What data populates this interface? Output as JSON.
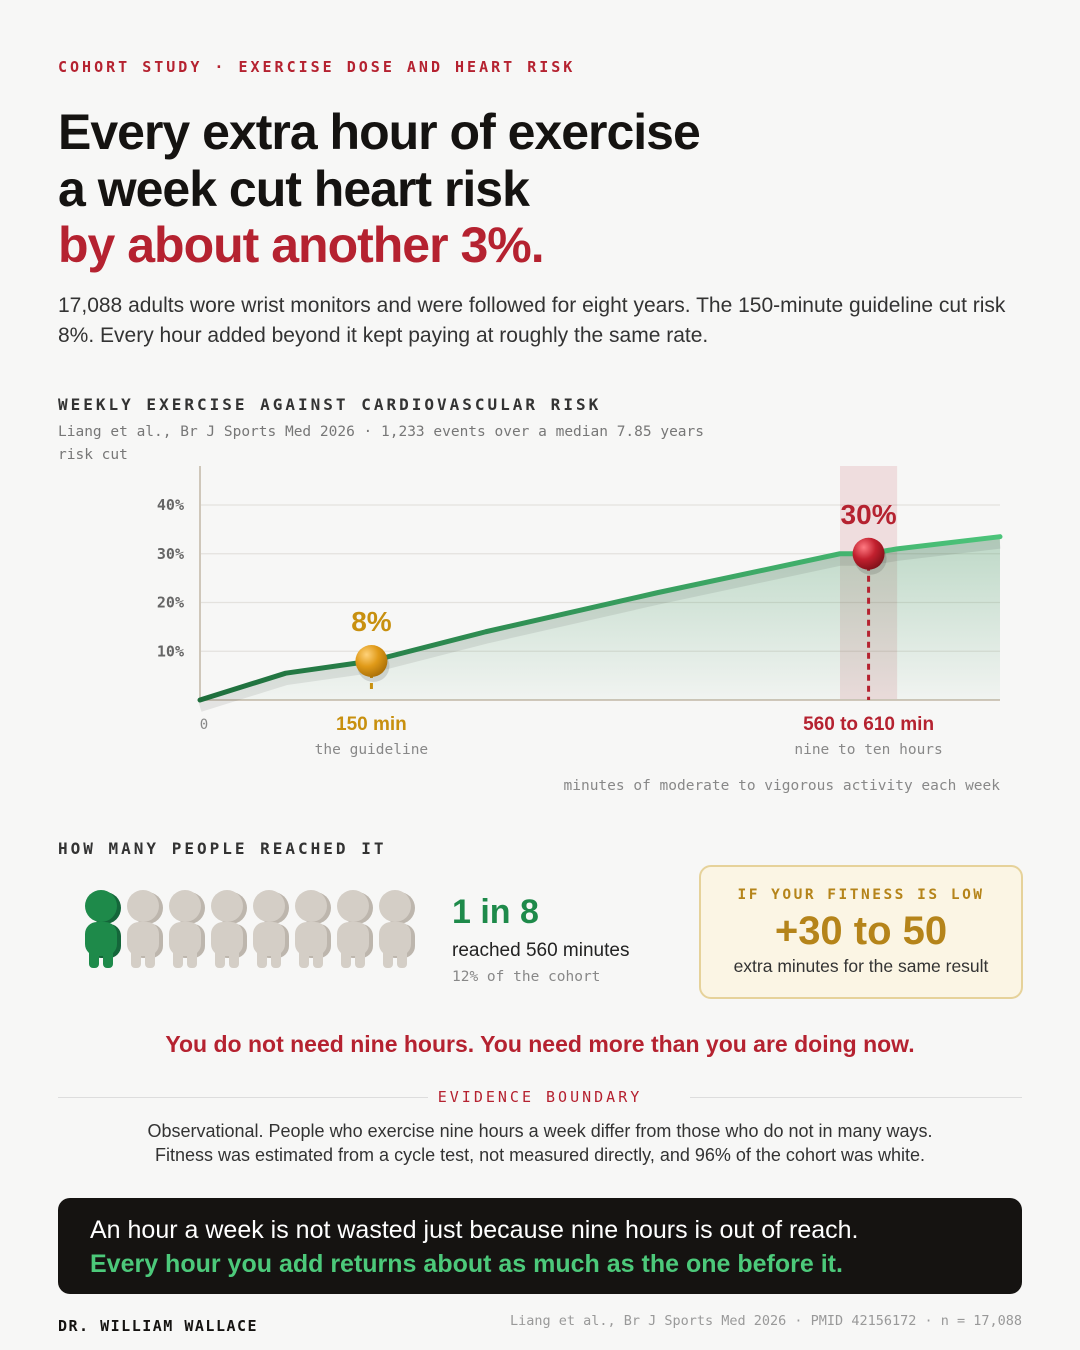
{
  "eyebrow": "COHORT STUDY · EXERCISE DOSE AND HEART RISK",
  "headline": {
    "line1": "Every extra hour of exercise",
    "line2": "a week cut heart risk",
    "highlight": "by about another 3%."
  },
  "intro": "17,088 adults wore wrist monitors and were followed for eight years. The 150-minute guideline cut risk 8%. Every hour added beyond it kept paying at roughly the same rate.",
  "chart_data": {
    "type": "line",
    "title": "WEEKLY EXERCISE AGAINST CARDIOVASCULAR RISK",
    "subtitle": "Liang et al., Br J Sports Med 2026 · 1,233 events over a median 7.85 years",
    "y_label": "risk cut",
    "x_label": "minutes of moderate to vigorous activity each week",
    "x": [
      0,
      75,
      150,
      250,
      400,
      560,
      585,
      610,
      700
    ],
    "values": [
      0,
      5.5,
      8,
      14,
      22,
      30,
      30,
      31,
      33.5
    ],
    "color": "#2a8a4e",
    "xlim": [
      0,
      700
    ],
    "xticks": [
      0
    ],
    "ylim": [
      0,
      48
    ],
    "yticks": [
      {
        "value": 10,
        "label": "10%"
      },
      {
        "value": 20,
        "label": "20%"
      },
      {
        "value": 30,
        "label": "30%"
      },
      {
        "value": 40,
        "label": "40%"
      }
    ],
    "grid": true,
    "annotations": [
      {
        "x": 150,
        "value": 8,
        "value_label": "8%",
        "label": "150 min",
        "note": "the guideline",
        "color": "#c8900f"
      },
      {
        "x": 585,
        "value": 30,
        "value_label": "30%",
        "label": "560 to 610 min",
        "note": "nine to ten hours",
        "color": "#b52230",
        "band": [
          560,
          610
        ]
      }
    ]
  },
  "reach": {
    "title": "HOW MANY PEOPLE REACHED IT",
    "people": 8,
    "highlighted": 1,
    "stat": "1 in 8",
    "stat_label": "reached 560 minutes",
    "stat_note": "12% of the cohort"
  },
  "callout": {
    "title": "IF YOUR FITNESS IS LOW",
    "value": "+30 to 50",
    "note": "extra minutes for the same result"
  },
  "pull_quote": "You do not need nine hours. You need more than you are doing now.",
  "evidence": {
    "title": "EVIDENCE BOUNDARY",
    "lines": [
      "Observational. People who exercise nine hours a week differ from those who do not in many ways.",
      "Fitness was estimated from a cycle test, not measured directly, and 96% of the cohort was white."
    ]
  },
  "closing": {
    "line1": "An hour a week is not wasted just because nine hours is out of reach.",
    "line2": "Every hour you add returns about as much as the one before it."
  },
  "footer": {
    "author": "DR. WILLIAM WALLACE",
    "citation": "Liang et al., Br J Sports Med 2026 · PMID 42156172 · n = 17,088"
  }
}
